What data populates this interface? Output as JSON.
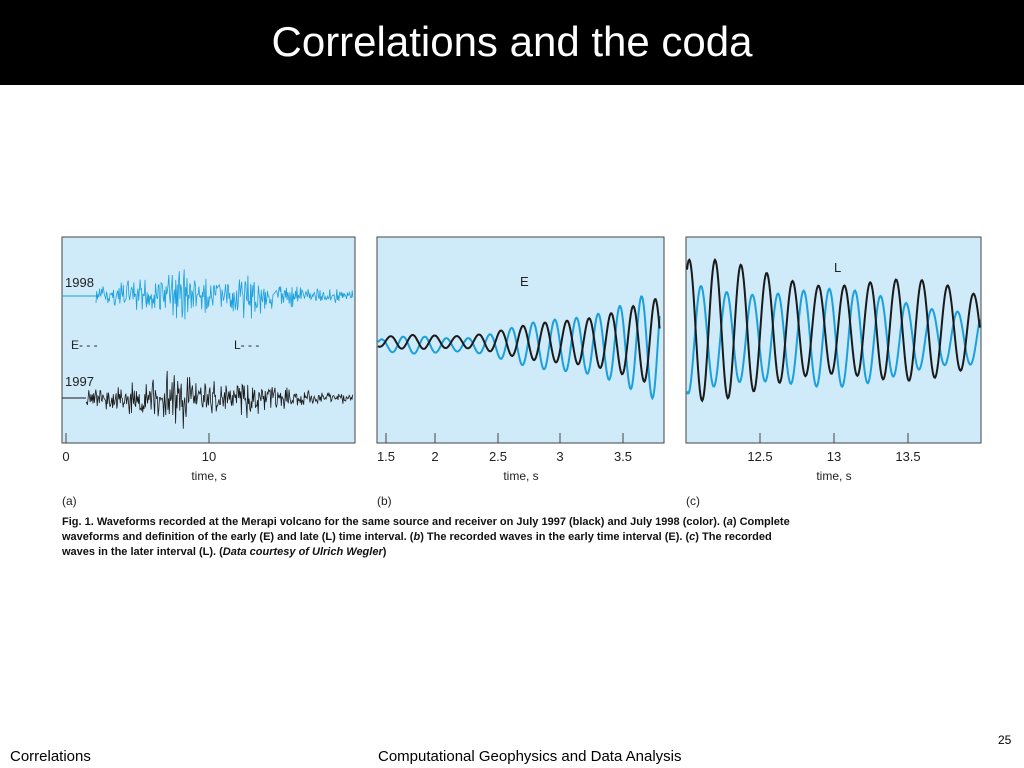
{
  "slide": {
    "title": "Correlations and the coda",
    "footer_left": "Correlations",
    "footer_center": "Computational Geophysics and Data Analysis",
    "page_number": "25"
  },
  "caption": {
    "p1": "Fig. 1.  Waveforms recorded at the Merapi volcano for the same source and receiver on July 1997 (black) and July 1998 (color). (",
    "a": "a",
    "p2": ") Complete waveforms and definition of the early (E) and late (L) time interval. (",
    "b": "b",
    "p3": ") The recorded waves in the early time interval (E). (",
    "c": "c",
    "p4": ") The recorded waves in the later interval (L). (",
    "credit": "Data courtesy of Ulrich Wegler",
    "p5": ")"
  },
  "colors": {
    "plot_bg": "#cfeaf9",
    "series_1998": "#1aa0dc",
    "series_1997": "#1a1a1a",
    "frame": "#444444"
  },
  "chart_data": [
    {
      "type": "line",
      "panel_label": "(a)",
      "xlabel": "time, s",
      "xticks": [
        "0",
        "10"
      ],
      "xlim": [
        0,
        20
      ],
      "series": [
        {
          "name": "1998",
          "description": "full waveform, strongest near 6-7 s"
        },
        {
          "name": "1997",
          "description": "full waveform, strongest near 6-7 s"
        }
      ],
      "annotations": [
        "E- - -",
        "L- - -"
      ]
    },
    {
      "type": "line",
      "panel_label": "(b)",
      "xlabel": "time, s",
      "xticks": [
        "1.5",
        "2",
        "2.5",
        "3",
        "3.5"
      ],
      "xlim": [
        1.5,
        3.8
      ],
      "annotations": [
        "E"
      ]
    },
    {
      "type": "line",
      "panel_label": "(c)",
      "xlabel": "time, s",
      "xticks": [
        "12.5",
        "13",
        "13.5"
      ],
      "xlim": [
        12.0,
        14.0
      ],
      "annotations": [
        "L"
      ]
    }
  ]
}
